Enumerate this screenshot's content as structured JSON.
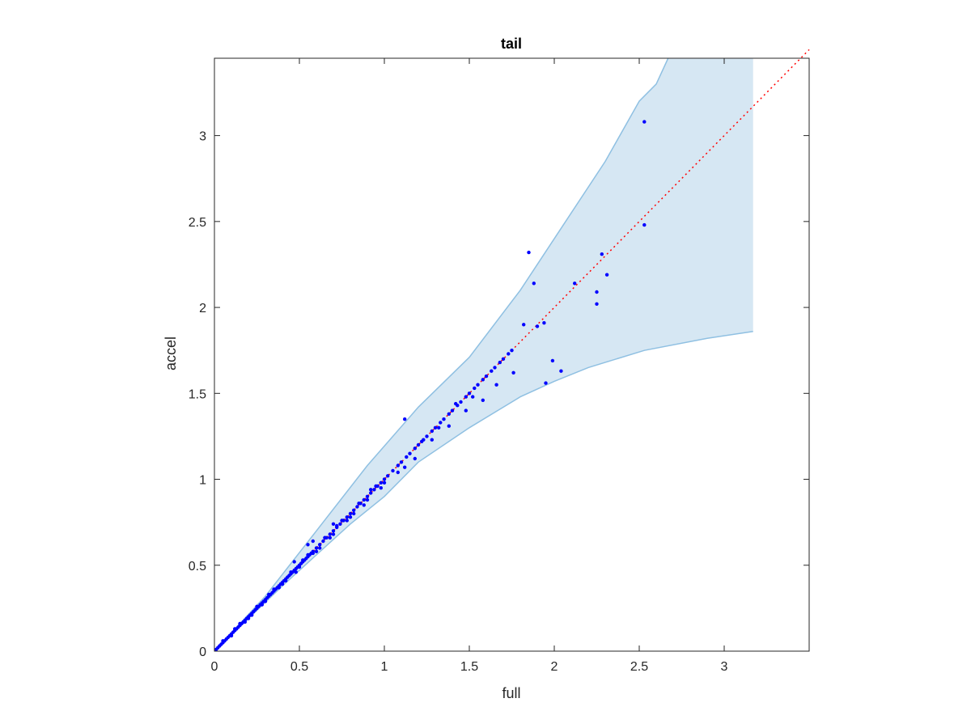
{
  "chart_data": {
    "type": "scatter",
    "title": "tail",
    "xlabel": "full",
    "ylabel": "accel",
    "xlim": [
      0,
      3.5
    ],
    "ylim": [
      0,
      3.45
    ],
    "xticks": [
      0,
      0.5,
      1,
      1.5,
      2,
      2.5,
      3
    ],
    "xtick_labels": [
      "0",
      "0.5",
      "1",
      "1.5",
      "2",
      "2.5",
      "3"
    ],
    "yticks": [
      0,
      0.5,
      1,
      1.5,
      2,
      2.5,
      3
    ],
    "ytick_labels": [
      "0",
      "0.5",
      "1",
      "1.5",
      "2",
      "2.5",
      "3"
    ],
    "grid": false,
    "reference_line": {
      "from": [
        0,
        0
      ],
      "to": [
        3.5,
        3.5
      ],
      "style": "dotted",
      "color": "#ff0000"
    },
    "band": {
      "fill_color": "#d6e7f3",
      "edge_color": "#8fc0e2",
      "upper": [
        [
          0,
          0
        ],
        [
          0.3,
          0.32
        ],
        [
          0.6,
          0.7
        ],
        [
          0.9,
          1.08
        ],
        [
          1.2,
          1.42
        ],
        [
          1.5,
          1.71
        ],
        [
          1.8,
          2.1
        ],
        [
          2.1,
          2.55
        ],
        [
          2.3,
          2.85
        ],
        [
          2.5,
          3.2
        ],
        [
          2.6,
          3.3
        ],
        [
          2.67,
          3.45
        ],
        [
          3.17,
          3.45
        ]
      ],
      "lower": [
        [
          3.17,
          1.86
        ],
        [
          2.9,
          1.82
        ],
        [
          2.53,
          1.75
        ],
        [
          2.2,
          1.65
        ],
        [
          2.0,
          1.57
        ],
        [
          1.8,
          1.48
        ],
        [
          1.5,
          1.3
        ],
        [
          1.2,
          1.1
        ],
        [
          1.0,
          0.9
        ],
        [
          0.8,
          0.74
        ],
        [
          0.6,
          0.56
        ],
        [
          0.4,
          0.38
        ],
        [
          0.2,
          0.19
        ],
        [
          0,
          0
        ]
      ]
    },
    "series": [
      {
        "color": "#0000ff",
        "x": [
          0.01,
          0.02,
          0.03,
          0.04,
          0.05,
          0.06,
          0.07,
          0.08,
          0.09,
          0.1,
          0.11,
          0.12,
          0.13,
          0.14,
          0.15,
          0.16,
          0.17,
          0.18,
          0.19,
          0.2,
          0.21,
          0.22,
          0.23,
          0.24,
          0.25,
          0.26,
          0.27,
          0.28,
          0.29,
          0.3,
          0.31,
          0.32,
          0.33,
          0.34,
          0.35,
          0.36,
          0.37,
          0.38,
          0.39,
          0.4,
          0.41,
          0.42,
          0.43,
          0.44,
          0.45,
          0.46,
          0.47,
          0.48,
          0.49,
          0.5,
          0.51,
          0.52,
          0.53,
          0.54,
          0.55,
          0.56,
          0.57,
          0.58,
          0.6,
          0.62,
          0.64,
          0.66,
          0.68,
          0.7,
          0.72,
          0.74,
          0.76,
          0.78,
          0.8,
          0.82,
          0.84,
          0.86,
          0.88,
          0.9,
          0.92,
          0.94,
          0.96,
          0.98,
          1.0,
          1.02,
          1.05,
          1.08,
          1.1,
          1.13,
          1.15,
          1.18,
          1.2,
          1.23,
          1.25,
          1.28,
          1.3,
          1.33,
          1.35,
          1.38,
          1.4,
          1.43,
          1.45,
          1.48,
          1.5,
          1.53,
          1.55,
          1.58,
          1.6,
          1.63,
          1.65,
          1.68,
          1.7,
          1.73,
          1.75,
          1.82,
          1.85,
          1.88,
          1.9,
          1.94,
          1.95,
          1.99,
          2.04,
          2.12,
          2.25,
          2.25,
          2.28,
          2.31,
          2.53,
          2.53,
          0.05,
          0.1,
          0.15,
          0.2,
          0.25,
          0.3,
          0.35,
          0.4,
          0.45,
          0.5,
          0.55,
          0.6,
          0.65,
          0.7,
          0.75,
          0.8,
          0.85,
          0.9,
          0.95,
          1.0,
          0.12,
          0.22,
          0.32,
          0.42,
          0.52,
          0.62,
          0.72,
          0.82,
          0.92,
          1.12,
          1.22,
          1.32,
          1.42,
          1.52,
          0.18,
          0.28,
          0.38,
          0.48,
          0.58,
          0.68,
          0.78,
          0.88,
          0.98,
          1.08,
          1.18,
          1.28,
          1.38,
          1.48,
          1.58,
          1.66,
          1.76,
          1.12,
          0.65,
          0.55,
          0.58,
          0.7,
          0.47
        ],
        "y": [
          0.01,
          0.02,
          0.03,
          0.04,
          0.05,
          0.06,
          0.07,
          0.08,
          0.09,
          0.1,
          0.11,
          0.12,
          0.13,
          0.14,
          0.15,
          0.16,
          0.17,
          0.18,
          0.19,
          0.2,
          0.21,
          0.22,
          0.23,
          0.24,
          0.25,
          0.26,
          0.27,
          0.28,
          0.29,
          0.3,
          0.31,
          0.32,
          0.33,
          0.34,
          0.35,
          0.36,
          0.37,
          0.38,
          0.39,
          0.4,
          0.41,
          0.42,
          0.43,
          0.44,
          0.45,
          0.46,
          0.47,
          0.48,
          0.49,
          0.5,
          0.51,
          0.52,
          0.53,
          0.54,
          0.55,
          0.56,
          0.57,
          0.58,
          0.6,
          0.62,
          0.64,
          0.66,
          0.68,
          0.7,
          0.72,
          0.74,
          0.76,
          0.78,
          0.8,
          0.82,
          0.84,
          0.86,
          0.88,
          0.9,
          0.92,
          0.94,
          0.96,
          0.98,
          1.0,
          1.02,
          1.05,
          1.08,
          1.1,
          1.13,
          1.15,
          1.18,
          1.2,
          1.23,
          1.25,
          1.28,
          1.3,
          1.33,
          1.35,
          1.38,
          1.4,
          1.43,
          1.45,
          1.48,
          1.5,
          1.53,
          1.55,
          1.58,
          1.6,
          1.63,
          1.65,
          1.68,
          1.7,
          1.73,
          1.75,
          1.9,
          2.32,
          2.14,
          1.89,
          1.91,
          1.56,
          1.69,
          1.63,
          2.14,
          2.09,
          2.02,
          2.31,
          2.19,
          3.08,
          2.48,
          0.06,
          0.09,
          0.16,
          0.19,
          0.26,
          0.29,
          0.36,
          0.39,
          0.46,
          0.49,
          0.56,
          0.58,
          0.66,
          0.68,
          0.76,
          0.78,
          0.86,
          0.88,
          0.96,
          0.98,
          0.13,
          0.21,
          0.33,
          0.41,
          0.53,
          0.6,
          0.73,
          0.8,
          0.94,
          1.07,
          1.22,
          1.3,
          1.44,
          1.48,
          0.17,
          0.27,
          0.37,
          0.46,
          0.57,
          0.66,
          0.76,
          0.85,
          0.95,
          1.04,
          1.12,
          1.23,
          1.31,
          1.4,
          1.46,
          1.55,
          1.62,
          1.35,
          0.66,
          0.62,
          0.64,
          0.74,
          0.52
        ]
      }
    ]
  }
}
